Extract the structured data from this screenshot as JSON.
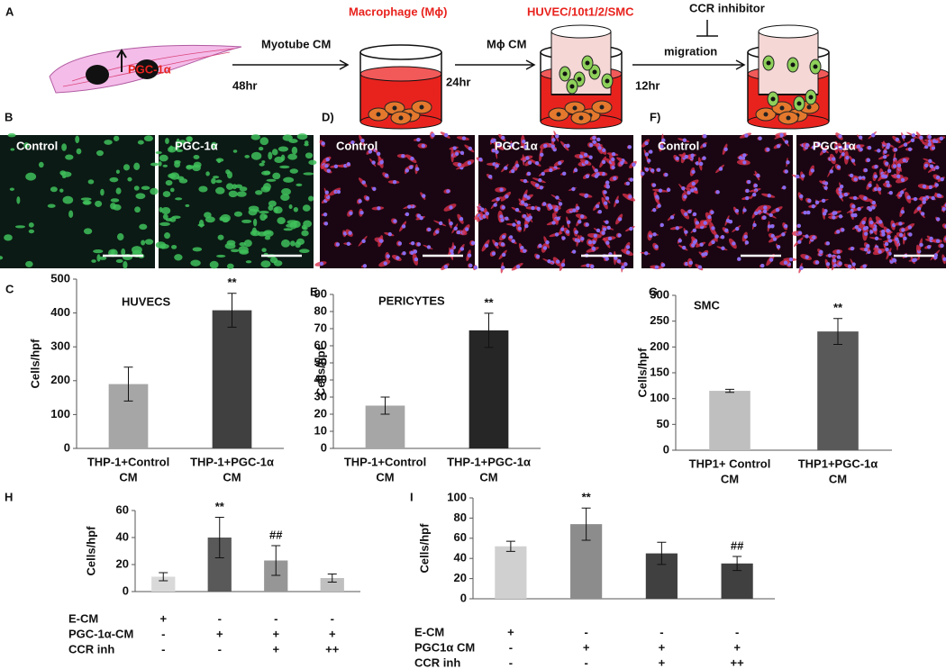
{
  "schematic": {
    "panel": "A",
    "gene": "PGC-1α",
    "time1": "48hr",
    "medium1": "Myotube CM",
    "cell1": "Macrophage (Mϕ)",
    "time2": "24hr",
    "medium2": "Mϕ CM",
    "cell2": "HUVEC/10t1/2/SMC",
    "time3": "12hr",
    "inhibitor": "CCR inhibitor",
    "step3": "migration"
  },
  "micrographs": [
    {
      "panel": "B",
      "images": [
        {
          "label": "Control"
        },
        {
          "label": "PGC-1α"
        }
      ]
    },
    {
      "panel": "D)",
      "images": [
        {
          "label": "Control"
        },
        {
          "label": "PGC-1α"
        }
      ]
    },
    {
      "panel": "F)",
      "images": [
        {
          "label": "Control"
        },
        {
          "label": "PGC-1α"
        }
      ]
    }
  ],
  "chart_data": [
    {
      "type": "bar",
      "panel": "C",
      "title": "HUVECS",
      "ylabel": "Cells/hpf",
      "categories": [
        [
          "THP-1+Control",
          "CM"
        ],
        [
          "THP-1+PGC-1α",
          "CM"
        ]
      ],
      "values": [
        190,
        408
      ],
      "errors": [
        50,
        50
      ],
      "colors": [
        "#a6a6a6",
        "#404040"
      ],
      "bar_labels": [
        null,
        "**"
      ],
      "ylim": [
        0,
        500
      ],
      "yticks": [
        0,
        100,
        200,
        300,
        400,
        500
      ]
    },
    {
      "type": "bar",
      "panel": "E",
      "title": "PERICYTES",
      "ylabel": "Cells/hpf",
      "categories": [
        [
          "THP-1+Control",
          "CM"
        ],
        [
          "THP-1+PGC-1α",
          "CM"
        ]
      ],
      "values": [
        25,
        69
      ],
      "errors": [
        5,
        10
      ],
      "colors": [
        "#a6a6a6",
        "#262626"
      ],
      "bar_labels": [
        null,
        "**"
      ],
      "ylim": [
        0,
        90
      ],
      "yticks": [
        0,
        10,
        20,
        30,
        40,
        50,
        60,
        70,
        80,
        90
      ]
    },
    {
      "type": "bar",
      "panel": "G",
      "title": "SMC",
      "ylabel": "Cells/hpf",
      "categories": [
        [
          "THP1+ Control",
          "CM"
        ],
        [
          "THP1+PGC-1α",
          "CM"
        ]
      ],
      "values": [
        115,
        230
      ],
      "errors": [
        3,
        25
      ],
      "colors": [
        "#bfbfbf",
        "#595959"
      ],
      "bar_labels": [
        null,
        "**"
      ],
      "ylim": [
        0,
        300
      ],
      "yticks": [
        0,
        50,
        100,
        150,
        200,
        250,
        300
      ]
    },
    {
      "type": "bar",
      "panel": "H",
      "ylabel": "Cells/hpf",
      "values": [
        11,
        40,
        23,
        10
      ],
      "errors": [
        3,
        15,
        11,
        3
      ],
      "colors": [
        "#d9d9d9",
        "#595959",
        "#969696",
        "#bfbfbf"
      ],
      "bar_labels": [
        null,
        "**",
        "##",
        null
      ],
      "conditions": [
        {
          "name": "E-CM",
          "marks": [
            "+",
            "-",
            "-",
            "-"
          ]
        },
        {
          "name": "PGC-1α-CM",
          "marks": [
            "-",
            "+",
            "+",
            "+"
          ]
        },
        {
          "name": "CCR inh",
          "marks": [
            "-",
            "-",
            "+",
            "++"
          ]
        }
      ],
      "ylim": [
        0,
        60
      ],
      "yticks": [
        0,
        20,
        40,
        60
      ]
    },
    {
      "type": "bar",
      "panel": "I",
      "ylabel": "Cells/hpf",
      "values": [
        52,
        74,
        45,
        35
      ],
      "errors": [
        5,
        16,
        11,
        7
      ],
      "colors": [
        "#d0d0d0",
        "#8c8c8c",
        "#404040",
        "#404040"
      ],
      "bar_labels": [
        null,
        "**",
        null,
        "##"
      ],
      "conditions": [
        {
          "name": "E-CM",
          "marks": [
            "+",
            "-",
            "-",
            "-"
          ]
        },
        {
          "name": "PGC1α CM",
          "marks": [
            "-",
            "+",
            "+",
            "+"
          ]
        },
        {
          "name": "CCR inh",
          "marks": [
            "-",
            "-",
            "+",
            "++"
          ]
        }
      ],
      "ylim": [
        0,
        100
      ],
      "yticks": [
        0,
        20,
        40,
        60,
        80,
        100
      ]
    }
  ]
}
